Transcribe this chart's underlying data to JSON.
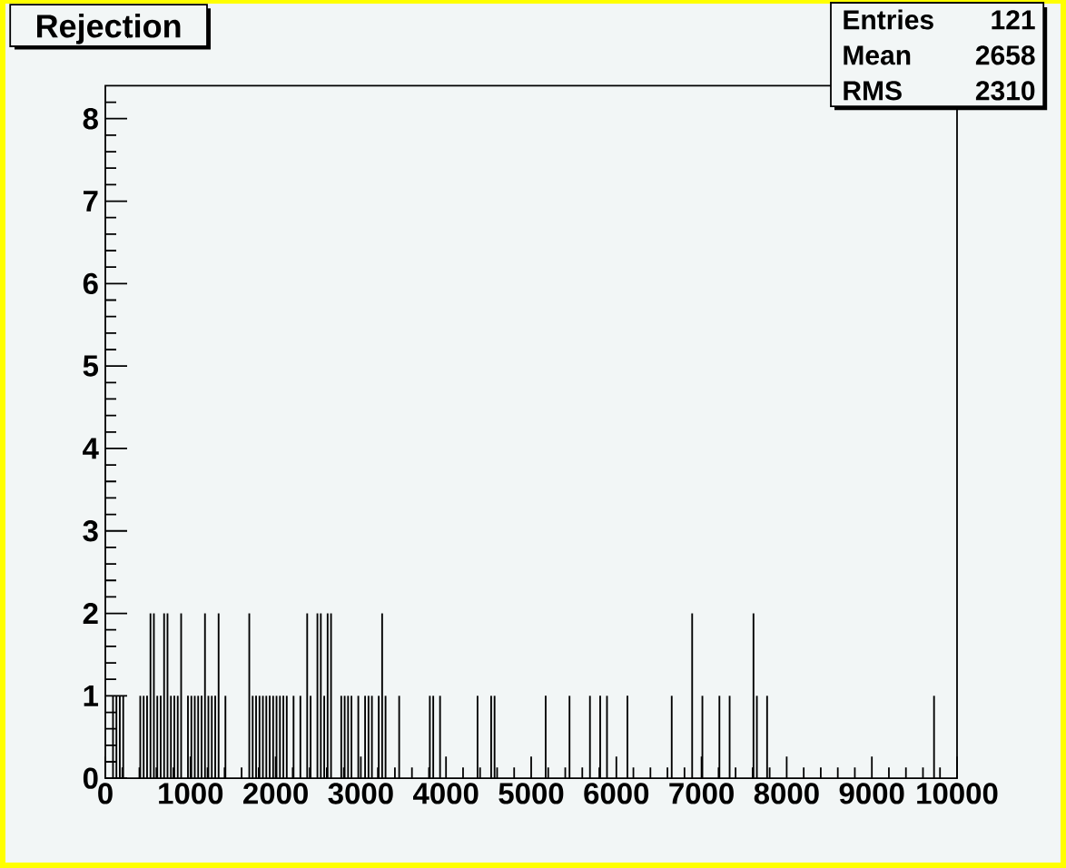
{
  "chart_data": {
    "type": "histogram",
    "title": "Rejection",
    "bins": [
      80,
      100,
      120,
      140,
      160,
      180,
      200,
      220,
      400,
      420,
      440,
      460,
      480,
      500,
      520,
      540,
      560,
      580,
      600,
      620,
      640,
      660,
      680,
      700,
      720,
      740,
      760,
      780,
      800,
      820,
      840,
      860,
      880,
      900,
      960,
      980,
      1000,
      1020,
      1040,
      1060,
      1080,
      1100,
      1120,
      1140,
      1160,
      1180,
      1200,
      1220,
      1240,
      1260,
      1280,
      1300,
      1320,
      1340,
      1400,
      1420,
      1680,
      1700,
      1720,
      1740,
      1760,
      1780,
      1800,
      1820,
      1840,
      1860,
      1880,
      1900,
      1920,
      1940,
      1960,
      1980,
      2000,
      2020,
      2040,
      2060,
      2080,
      2100,
      2120,
      2140,
      2200,
      2220,
      2280,
      2300,
      2360,
      2380,
      2400,
      2420,
      2480,
      2500,
      2520,
      2540,
      2560,
      2580,
      2600,
      2620,
      2640,
      2660,
      2760,
      2780,
      2800,
      2820,
      2840,
      2860,
      2880,
      2900,
      2960,
      2980,
      3040,
      3060,
      3080,
      3100,
      3120,
      3140,
      3200,
      3220,
      3240,
      3260,
      3280,
      3300,
      3440,
      3460,
      3800,
      3820,
      3840,
      3860,
      3920,
      3940,
      4360,
      4380,
      4520,
      4540,
      4560,
      4580,
      5160,
      5180,
      5440,
      5460,
      5680,
      5700,
      5800,
      5820,
      5880,
      5900,
      6120,
      6140,
      6640,
      6660,
      6880,
      6900,
      7000,
      7020,
      7200,
      7220,
      7320,
      7340,
      7600,
      7620,
      7640,
      7660,
      7760,
      7780,
      9720,
      9740
    ],
    "values": [
      1,
      0,
      1,
      0,
      1,
      0,
      1,
      0,
      1,
      0,
      1,
      0,
      1,
      0,
      2,
      0,
      2,
      0,
      1,
      0,
      1,
      0,
      2,
      0,
      2,
      0,
      1,
      0,
      1,
      0,
      1,
      0,
      2,
      0,
      1,
      0,
      1,
      0,
      1,
      0,
      1,
      0,
      1,
      0,
      2,
      0,
      1,
      0,
      1,
      0,
      1,
      0,
      2,
      0,
      1,
      0,
      2,
      0,
      1,
      0,
      1,
      0,
      1,
      0,
      1,
      0,
      1,
      0,
      1,
      0,
      1,
      0,
      1,
      0,
      1,
      0,
      1,
      0,
      1,
      0,
      1,
      0,
      1,
      0,
      2,
      0,
      1,
      0,
      2,
      0,
      2,
      0,
      1,
      0,
      2,
      0,
      2,
      0,
      1,
      0,
      1,
      0,
      1,
      0,
      1,
      0,
      1,
      0,
      1,
      0,
      1,
      0,
      1,
      0,
      1,
      0,
      2,
      0,
      1,
      0,
      1,
      0,
      1,
      0,
      1,
      0,
      1,
      0,
      1,
      0,
      1,
      0,
      1,
      0,
      1,
      0,
      1,
      0,
      1,
      0,
      1,
      0,
      1,
      0,
      1,
      0,
      1,
      0,
      2,
      0,
      1,
      0,
      1,
      0,
      1,
      0,
      2,
      0,
      1,
      0,
      1,
      0,
      1
    ],
    "color": "#000000",
    "xlim": [
      0,
      10000
    ],
    "ylim": [
      0,
      8.4
    ],
    "xticks": [
      0,
      1000,
      2000,
      3000,
      4000,
      5000,
      6000,
      7000,
      8000,
      9000,
      10000,
      {
        "value": 200,
        "label": null
      },
      {
        "value": 400,
        "label": null
      },
      {
        "value": 600,
        "label": null
      },
      {
        "value": 800,
        "label": null
      },
      {
        "value": 1200,
        "label": null
      },
      {
        "value": 1400,
        "label": null
      },
      {
        "value": 1600,
        "label": null
      },
      {
        "value": 1800,
        "label": null
      },
      {
        "value": 2200,
        "label": null
      },
      {
        "value": 2400,
        "label": null
      },
      {
        "value": 2600,
        "label": null
      },
      {
        "value": 2800,
        "label": null
      },
      {
        "value": 3200,
        "label": null
      },
      {
        "value": 3400,
        "label": null
      },
      {
        "value": 3600,
        "label": null
      },
      {
        "value": 3800,
        "label": null
      },
      {
        "value": 4200,
        "label": null
      },
      {
        "value": 4400,
        "label": null
      },
      {
        "value": 4600,
        "label": null
      },
      {
        "value": 4800,
        "label": null
      },
      {
        "value": 5200,
        "label": null
      },
      {
        "value": 5400,
        "label": null
      },
      {
        "value": 5600,
        "label": null
      },
      {
        "value": 5800,
        "label": null
      },
      {
        "value": 6200,
        "label": null
      },
      {
        "value": 6400,
        "label": null
      },
      {
        "value": 6600,
        "label": null
      },
      {
        "value": 6800,
        "label": null
      },
      {
        "value": 7200,
        "label": null
      },
      {
        "value": 7400,
        "label": null
      },
      {
        "value": 7600,
        "label": null
      },
      {
        "value": 7800,
        "label": null
      },
      {
        "value": 8200,
        "label": null
      },
      {
        "value": 8400,
        "label": null
      },
      {
        "value": 8600,
        "label": null
      },
      {
        "value": 8800,
        "label": null
      },
      {
        "value": 9200,
        "label": null
      },
      {
        "value": 9400,
        "label": null
      },
      {
        "value": 9600,
        "label": null
      },
      {
        "value": 9800,
        "label": null
      }
    ],
    "yticks": [
      0,
      1,
      2,
      3,
      4,
      5,
      6,
      7,
      8,
      {
        "value": 0.2,
        "label": null
      },
      {
        "value": 0.4,
        "label": null
      },
      {
        "value": 0.6,
        "label": null
      },
      {
        "value": 0.8,
        "label": null
      },
      {
        "value": 1.2,
        "label": null
      },
      {
        "value": 1.4,
        "label": null
      },
      {
        "value": 1.6,
        "label": null
      },
      {
        "value": 1.8,
        "label": null
      },
      {
        "value": 2.2,
        "label": null
      },
      {
        "value": 2.4,
        "label": null
      },
      {
        "value": 2.6,
        "label": null
      },
      {
        "value": 2.8,
        "label": null
      },
      {
        "value": 3.2,
        "label": null
      },
      {
        "value": 3.4,
        "label": null
      },
      {
        "value": 3.6,
        "label": null
      },
      {
        "value": 3.8,
        "label": null
      },
      {
        "value": 4.2,
        "label": null
      },
      {
        "value": 4.4,
        "label": null
      },
      {
        "value": 4.6,
        "label": null
      },
      {
        "value": 4.8,
        "label": null
      },
      {
        "value": 5.2,
        "label": null
      },
      {
        "value": 5.4,
        "label": null
      },
      {
        "value": 5.6,
        "label": null
      },
      {
        "value": 5.8,
        "label": null
      },
      {
        "value": 6.2,
        "label": null
      },
      {
        "value": 6.4,
        "label": null
      },
      {
        "value": 6.6,
        "label": null
      },
      {
        "value": 6.8,
        "label": null
      },
      {
        "value": 7.2,
        "label": null
      },
      {
        "value": 7.4,
        "label": null
      },
      {
        "value": 7.6,
        "label": null
      },
      {
        "value": 7.8,
        "label": null
      },
      {
        "value": 8.2,
        "label": null
      }
    ],
    "annotations": [
      "Entries",
      "121",
      "Mean",
      "2658",
      "RMS",
      "2310"
    ]
  }
}
